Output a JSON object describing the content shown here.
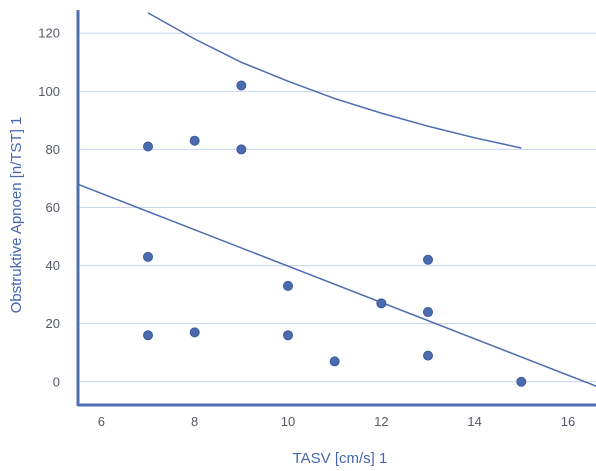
{
  "chart_data": {
    "type": "scatter",
    "title": "",
    "xlabel": "TASV [cm/s] 1",
    "ylabel": "Obstruktive Apnoen [n/TST] 1",
    "xlim": [
      5.5,
      16.6
    ],
    "ylim": [
      -8,
      128
    ],
    "xticks": [
      6,
      8,
      10,
      12,
      14,
      16
    ],
    "yticks": [
      0,
      20,
      40,
      60,
      80,
      100,
      120
    ],
    "grid": "horizontal",
    "colors": {
      "points": "#4a6bae",
      "axis": "#4f6fb0",
      "grid": "#c7d3ec",
      "labels": "#4668b0"
    },
    "points": [
      {
        "x": 7,
        "y": 81
      },
      {
        "x": 7,
        "y": 43
      },
      {
        "x": 7,
        "y": 16
      },
      {
        "x": 8,
        "y": 83
      },
      {
        "x": 8,
        "y": 17
      },
      {
        "x": 9,
        "y": 102
      },
      {
        "x": 9,
        "y": 80
      },
      {
        "x": 10,
        "y": 33
      },
      {
        "x": 10,
        "y": 16
      },
      {
        "x": 11,
        "y": 7
      },
      {
        "x": 12,
        "y": 27
      },
      {
        "x": 13,
        "y": 42
      },
      {
        "x": 13,
        "y": 24
      },
      {
        "x": 13,
        "y": 9
      },
      {
        "x": 15,
        "y": 0
      }
    ],
    "lines": [
      {
        "kind": "upper-curve",
        "points": [
          [
            7,
            127
          ],
          [
            8,
            118
          ],
          [
            9,
            110
          ],
          [
            10,
            103.5
          ],
          [
            11,
            97.5
          ],
          [
            12,
            92.5
          ],
          [
            13,
            88
          ],
          [
            14,
            84
          ],
          [
            15,
            80.5
          ]
        ]
      },
      {
        "kind": "regression-line",
        "points": [
          [
            5.5,
            68
          ],
          [
            16.6,
            -1.5
          ]
        ]
      }
    ]
  }
}
